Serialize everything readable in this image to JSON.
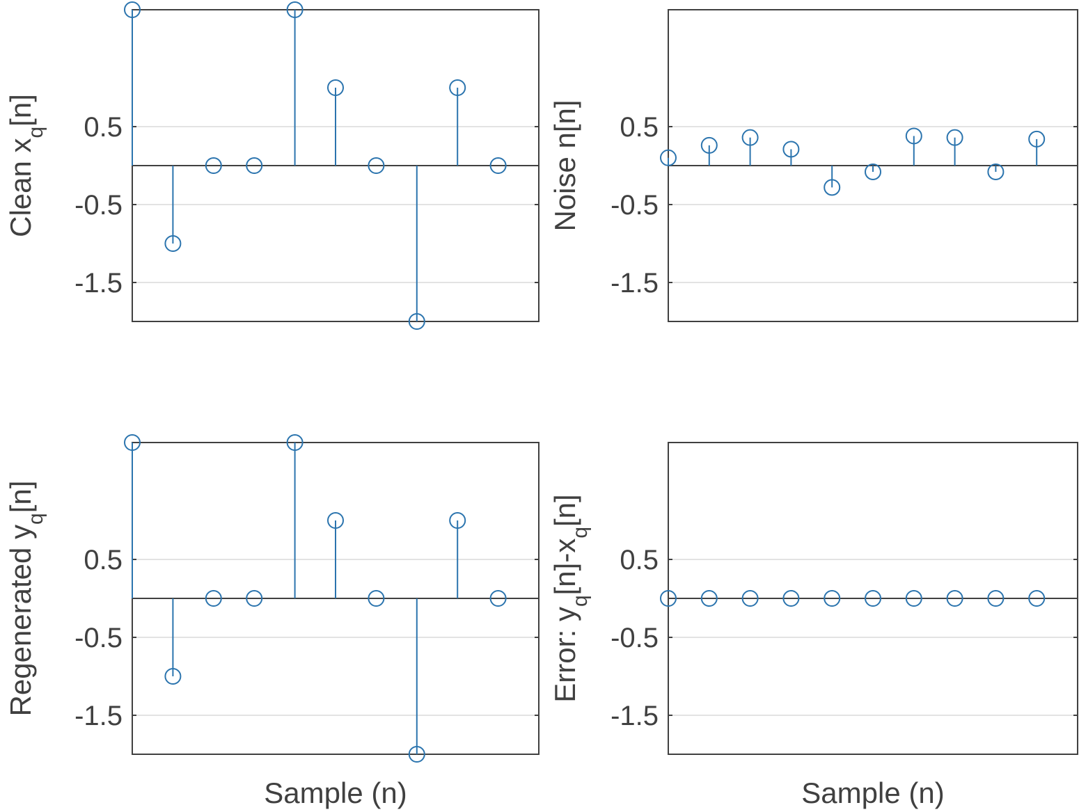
{
  "chart_data": [
    {
      "type": "stem",
      "ylabel_parts": [
        {
          "t": "Clean x"
        },
        {
          "t": "q",
          "sub": true
        },
        {
          "t": "[n]"
        }
      ],
      "xlabel": "",
      "x": [
        0,
        1,
        2,
        3,
        4,
        5,
        6,
        7,
        8,
        9
      ],
      "values": [
        2,
        -1,
        0,
        0,
        2,
        1,
        0,
        -2,
        1,
        0
      ],
      "xlim": [
        0,
        10
      ],
      "ylim": [
        -2,
        2
      ],
      "yticks": [
        0.5,
        -0.5,
        -1.5
      ],
      "ytick_labels": [
        "0.5",
        "-0.5",
        "-1.5"
      ],
      "grid": true
    },
    {
      "type": "stem",
      "ylabel_parts": [
        {
          "t": "Noise n[n]"
        }
      ],
      "xlabel": "",
      "x": [
        0,
        1,
        2,
        3,
        4,
        5,
        6,
        7,
        8,
        9
      ],
      "values": [
        0.1,
        0.26,
        0.36,
        0.21,
        -0.28,
        -0.08,
        0.38,
        0.36,
        -0.08,
        0.34
      ],
      "xlim": [
        0,
        10
      ],
      "ylim": [
        -2,
        2
      ],
      "yticks": [
        0.5,
        -0.5,
        -1.5
      ],
      "ytick_labels": [
        "0.5",
        "-0.5",
        "-1.5"
      ],
      "grid": true
    },
    {
      "type": "stem",
      "ylabel_parts": [
        {
          "t": "Regenerated y"
        },
        {
          "t": "q",
          "sub": true
        },
        {
          "t": "[n]"
        }
      ],
      "xlabel": "Sample (n)",
      "x": [
        0,
        1,
        2,
        3,
        4,
        5,
        6,
        7,
        8,
        9
      ],
      "values": [
        2,
        -1,
        0,
        0,
        2,
        1,
        0,
        -2,
        1,
        0
      ],
      "xlim": [
        0,
        10
      ],
      "ylim": [
        -2,
        2
      ],
      "yticks": [
        0.5,
        -0.5,
        -1.5
      ],
      "ytick_labels": [
        "0.5",
        "-0.5",
        "-1.5"
      ],
      "grid": true
    },
    {
      "type": "stem",
      "ylabel_parts": [
        {
          "t": "Error: y"
        },
        {
          "t": "q",
          "sub": true
        },
        {
          "t": "[n]-x"
        },
        {
          "t": "q",
          "sub": true
        },
        {
          "t": "[n]"
        }
      ],
      "xlabel": "Sample (n)",
      "x": [
        0,
        1,
        2,
        3,
        4,
        5,
        6,
        7,
        8,
        9
      ],
      "values": [
        0,
        0,
        0,
        0,
        0,
        0,
        0,
        0,
        0,
        0
      ],
      "xlim": [
        0,
        10
      ],
      "ylim": [
        -2,
        2
      ],
      "yticks": [
        0.5,
        -0.5,
        -1.5
      ],
      "ytick_labels": [
        "0.5",
        "-0.5",
        "-1.5"
      ],
      "grid": true
    }
  ],
  "colors": {
    "series": "#2b74ae",
    "axis": "#404040",
    "grid": "#e3e3e3"
  }
}
